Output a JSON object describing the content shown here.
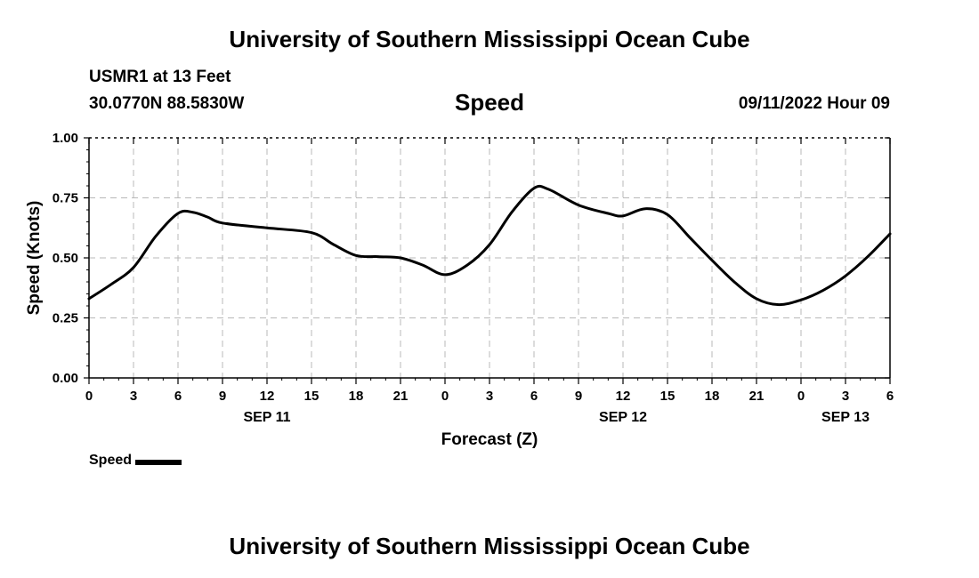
{
  "header": {
    "title": "University of Southern Mississippi Ocean Cube",
    "station": "USMR1 at 13 Feet",
    "coords": "30.0770N  88.5830W",
    "variable": "Speed",
    "run_time": "09/11/2022 Hour 09"
  },
  "footer": {
    "title": "University of Southern Mississippi Ocean Cube"
  },
  "legend": {
    "label": "Speed"
  },
  "chart_data": {
    "type": "line",
    "title": "Speed",
    "xlabel": "Forecast (Z)",
    "ylabel": "Speed (Knots)",
    "xlim": [
      0,
      54
    ],
    "ylim": [
      0,
      1
    ],
    "x_unit": "hours from 00Z SEP 11",
    "xticks": [
      0,
      3,
      6,
      9,
      12,
      15,
      18,
      21,
      24,
      27,
      30,
      33,
      36,
      39,
      42,
      45,
      48,
      51,
      54
    ],
    "xtick_labels": [
      "0",
      "3",
      "6",
      "9",
      "12",
      "15",
      "18",
      "21",
      "0",
      "3",
      "6",
      "9",
      "12",
      "15",
      "18",
      "21",
      "0",
      "3",
      "6"
    ],
    "day_labels": [
      {
        "x": 12,
        "label": "SEP 11"
      },
      {
        "x": 36,
        "label": "SEP 12"
      },
      {
        "x": 51,
        "label": "SEP 13"
      }
    ],
    "yticks": [
      0,
      0.25,
      0.5,
      0.75,
      1
    ],
    "ytick_labels": [
      "0.00",
      "0.25",
      "0.50",
      "0.75",
      "1.00"
    ],
    "grid": true,
    "line_color": "#000000",
    "series": [
      {
        "name": "Speed",
        "x": [
          0,
          1.5,
          3,
          4.5,
          6,
          7,
          8,
          9,
          12,
          15,
          16.5,
          18,
          19.5,
          21,
          22.5,
          24,
          25.5,
          27,
          28.5,
          30,
          31,
          33,
          35,
          36,
          37.5,
          39,
          40.5,
          42,
          43.5,
          45,
          46.5,
          48,
          49.5,
          51,
          52.5,
          54
        ],
        "y": [
          0.33,
          0.39,
          0.46,
          0.59,
          0.685,
          0.69,
          0.67,
          0.645,
          0.625,
          0.605,
          0.555,
          0.51,
          0.505,
          0.5,
          0.47,
          0.43,
          0.47,
          0.555,
          0.69,
          0.79,
          0.785,
          0.72,
          0.685,
          0.675,
          0.705,
          0.68,
          0.585,
          0.49,
          0.4,
          0.33,
          0.305,
          0.325,
          0.365,
          0.425,
          0.505,
          0.6
        ]
      }
    ]
  }
}
